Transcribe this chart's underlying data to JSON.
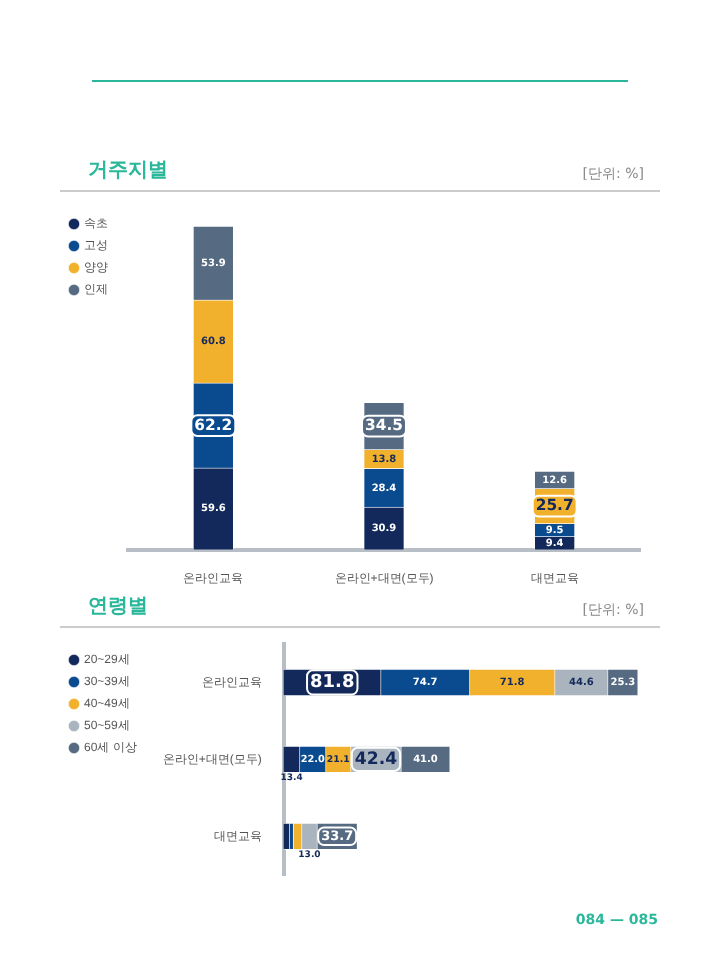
{
  "chart_data": [
    {
      "type": "bar",
      "title": "거주지별",
      "annotations": [
        "[단위: %]"
      ],
      "stacked": true,
      "legend": "left",
      "tick_labels": "x",
      "categories": [
        "온라인교육",
        "온라인+대면(모두)",
        "대면교육"
      ],
      "series": [
        {
          "name": "속초",
          "color": "#13295b",
          "values": [
            59.6,
            30.9,
            9.4
          ]
        },
        {
          "name": "고성",
          "color": "#0a4a8f",
          "values": [
            62.2,
            28.4,
            9.5
          ]
        },
        {
          "name": "양양",
          "color": "#f2b12c",
          "values": [
            60.8,
            13.8,
            25.7
          ]
        },
        {
          "name": "인제",
          "color": "#566a82",
          "values": [
            53.9,
            34.5,
            12.6
          ]
        }
      ],
      "data_labels": true
    },
    {
      "type": "bar",
      "title": "연령별",
      "annotations": [
        "[단위: %]",
        "084 — 085"
      ],
      "stacked": true,
      "orientation": "horizontal",
      "legend": "left",
      "tick_labels": "y",
      "categories": [
        "온라인교육",
        "온라인+대면(모두)",
        "대면교육"
      ],
      "series": [
        {
          "name": "20~29세",
          "color": "#13295b",
          "values": [
            81.8,
            13.4,
            4.8
          ],
          "value_labels": [
            "81.8",
            "13.4",
            null
          ]
        },
        {
          "name": "30~39세",
          "color": "#0a4a8f",
          "values": [
            74.7,
            22.0,
            3.3
          ],
          "value_labels": [
            "74.7",
            "22.0",
            null
          ]
        },
        {
          "name": "40~49세",
          "color": "#f2b12c",
          "values": [
            71.8,
            21.1,
            7.1
          ],
          "value_labels": [
            "71.8",
            "21.1",
            null
          ]
        },
        {
          "name": "50~59세",
          "color": "#a9b4bf",
          "values": [
            44.6,
            42.4,
            13.0
          ],
          "value_labels": [
            "44.6",
            "42.4",
            "13.0"
          ]
        },
        {
          "name": "60세 이상",
          "color": "#566a82",
          "values": [
            25.3,
            41.0,
            33.7
          ],
          "value_labels": [
            "25.3",
            "41.0",
            "33.7"
          ]
        }
      ]
    }
  ]
}
